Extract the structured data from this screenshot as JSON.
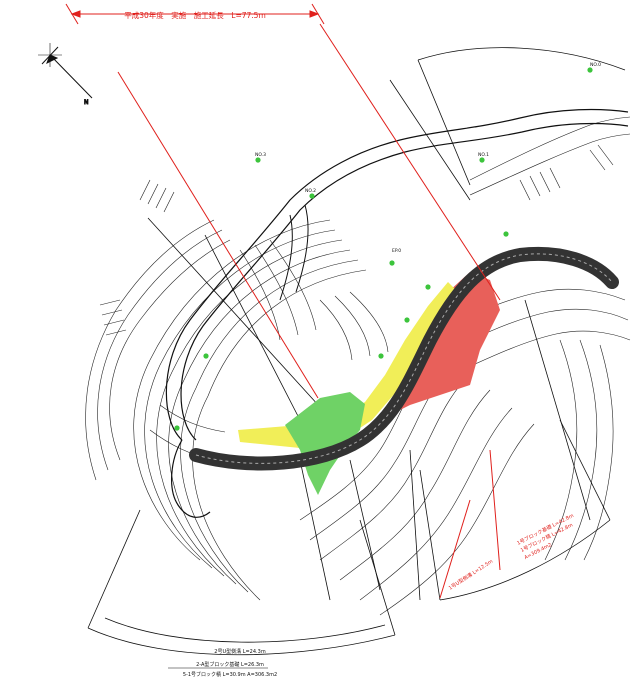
{
  "header_label": "平成30年度　実施　施工延長　L=77.5m",
  "bottom_labels": {
    "line1": "2号U型側溝 L=24.3m",
    "line2": "2-A型ブロック基礎 L=26.3m",
    "line3": "5-1号ブロック積 L=30.9m A=306.3m2"
  },
  "red_notes": {
    "n1": "1号U型側溝 L=12.5m",
    "n2": "1号ブロック基礎 L=42.8m",
    "n3": "1号ブロック積 L=42.8m",
    "n4": "A=309.4m2"
  },
  "point_labels": [
    "NO.3",
    "NO.2",
    "NO.1",
    "NO.0",
    "EP.0"
  ],
  "compass": {
    "north_label": "N"
  },
  "colors": {
    "red_line": "#e0201c",
    "zone_red": "#e8605a",
    "zone_yellow": "#f1ee58",
    "zone_green": "#6fd266",
    "marker_green": "#3cc43c",
    "road_dark": "#333333"
  }
}
